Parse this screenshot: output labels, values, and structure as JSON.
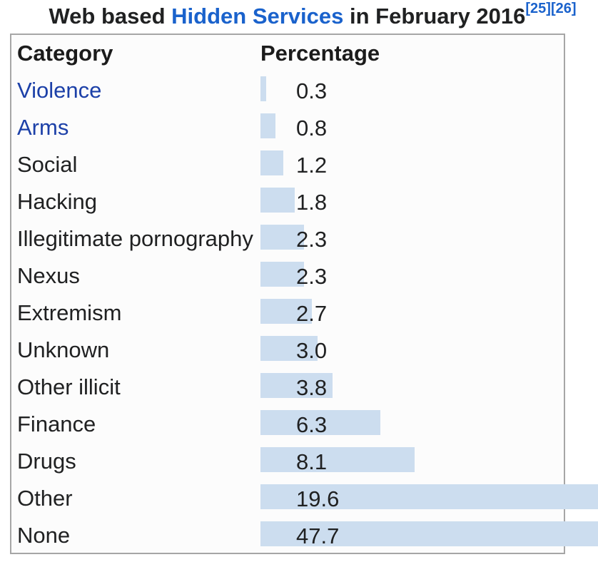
{
  "title": {
    "prefix": "Web based ",
    "link": "Hidden Services",
    "suffix": " in February 2016",
    "citations": [
      "[25]",
      "[26]"
    ]
  },
  "table": {
    "headers": {
      "category": "Category",
      "percentage": "Percentage"
    }
  },
  "chart_data": {
    "type": "bar",
    "orientation": "horizontal",
    "title": "Web based Hidden Services in February 2016",
    "xlabel": "Percentage",
    "ylabel": "Category",
    "unit": "percent",
    "categories": [
      "Violence",
      "Arms",
      "Social",
      "Hacking",
      "Illegitimate pornography",
      "Nexus",
      "Extremism",
      "Unknown",
      "Other illicit",
      "Finance",
      "Drugs",
      "Other",
      "None"
    ],
    "values": [
      0.3,
      0.8,
      1.2,
      1.8,
      2.3,
      2.3,
      2.7,
      3.0,
      3.8,
      6.3,
      8.1,
      19.6,
      47.7
    ],
    "linked_categories": [
      "Violence",
      "Arms"
    ],
    "bar_color": "#ccddef",
    "bars_overflow_table": true
  },
  "colors": {
    "text_dark": "#202122",
    "title_link_blue": "#1a62cc",
    "row_link_blue": "#1c40a8",
    "table_border": "#a6a6a6",
    "table_background": "#fcfcfc",
    "bar_fill": "#ccddef"
  }
}
